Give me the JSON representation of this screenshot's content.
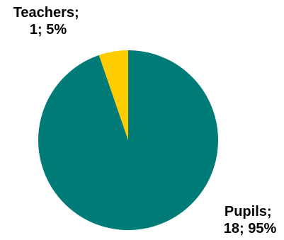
{
  "chart_data": {
    "type": "pie",
    "title": "",
    "slices": [
      {
        "name": "Pupils",
        "value": 18,
        "percent": 95,
        "color": "#007B78"
      },
      {
        "name": "Teachers",
        "value": 1,
        "percent": 5,
        "color": "#FFCC00"
      }
    ],
    "data_labels": [
      {
        "line1": "Pupils;",
        "line2": "18; 95%"
      },
      {
        "line1": "Teachers;",
        "line2": "1; 5%"
      }
    ],
    "legend": "none",
    "start_angle_deg": 0,
    "direction": "clockwise"
  }
}
